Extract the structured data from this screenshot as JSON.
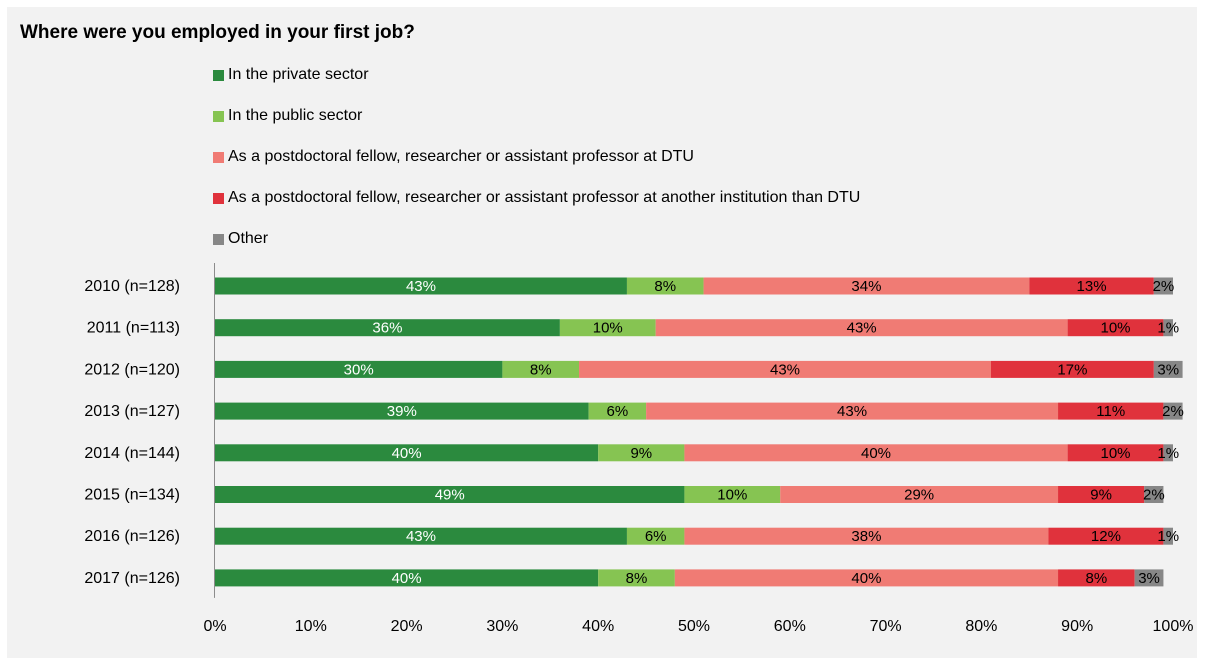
{
  "chart_data": {
    "type": "bar",
    "orientation": "horizontal",
    "stacked": true,
    "title": "Where were you employed in your first job?",
    "categories": [
      "2010 (n=128)",
      "2011 (n=113)",
      "2012 (n=120)",
      "2013 (n=127)",
      "2014 (n=144)",
      "2015 (n=134)",
      "2016 (n=126)",
      "2017 (n=126)"
    ],
    "series": [
      {
        "name": "In the private sector",
        "color": "#2b8a3e",
        "label_color": "#ffffff",
        "values": [
          43,
          36,
          30,
          39,
          40,
          49,
          43,
          40
        ]
      },
      {
        "name": "In the public sector",
        "color": "#86c452",
        "label_color": "#000000",
        "values": [
          8,
          10,
          8,
          6,
          9,
          10,
          6,
          8
        ]
      },
      {
        "name": "As a postdoctoral fellow, researcher or assistant professor at DTU",
        "color": "#f07b74",
        "label_color": "#000000",
        "values": [
          34,
          43,
          43,
          43,
          40,
          29,
          38,
          40
        ]
      },
      {
        "name": "As a postdoctoral fellow, researcher or assistant professor at another institution than DTU",
        "color": "#e0323c",
        "label_color": "#000000",
        "values": [
          13,
          10,
          17,
          11,
          10,
          9,
          12,
          8
        ]
      },
      {
        "name": "Other",
        "color": "#878787",
        "label_color": "#000000",
        "values": [
          2,
          1,
          3,
          2,
          1,
          2,
          1,
          3
        ]
      }
    ],
    "xlim": [
      0,
      100
    ],
    "x_ticks": [
      "0%",
      "10%",
      "20%",
      "30%",
      "40%",
      "50%",
      "60%",
      "70%",
      "80%",
      "90%",
      "100%"
    ],
    "value_suffix": "%",
    "grid": false,
    "legend_position": "top"
  }
}
